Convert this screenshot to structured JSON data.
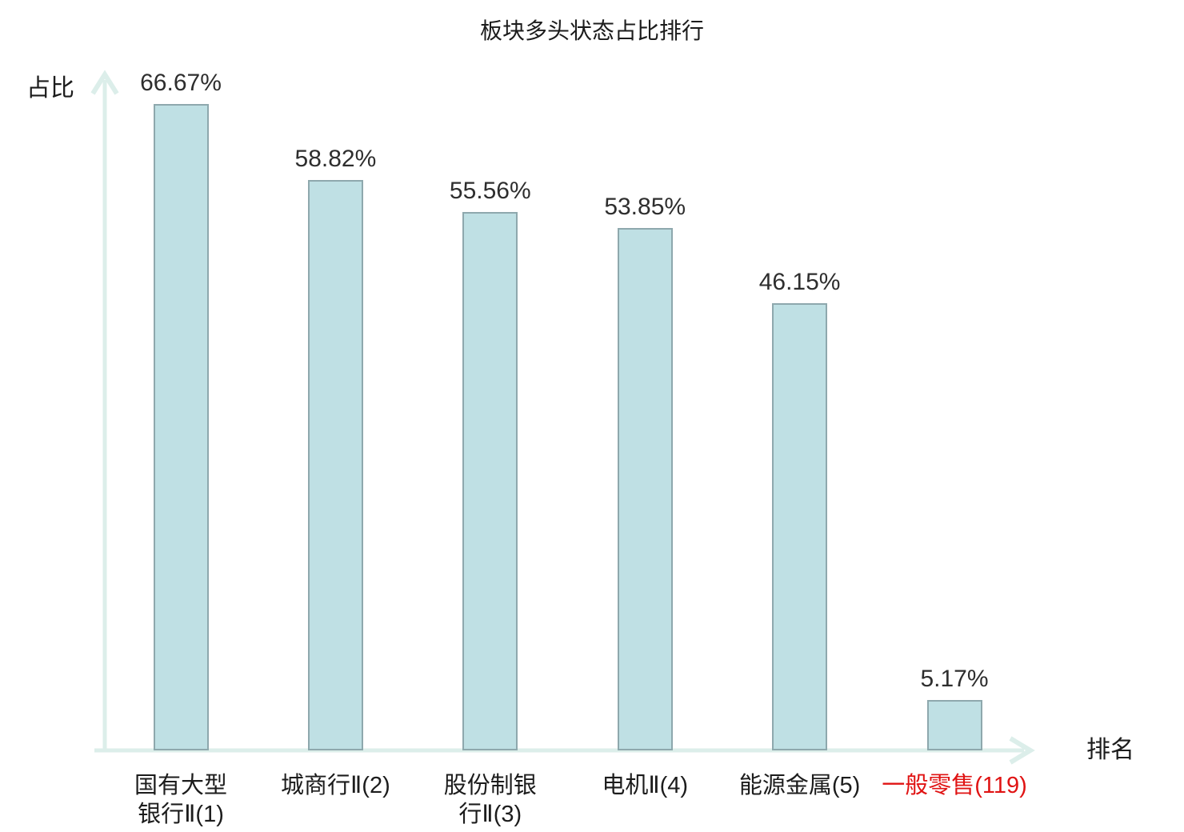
{
  "chart_data": {
    "type": "bar",
    "title": "板块多头状态占比排行",
    "xlabel": "排名",
    "ylabel": "占比",
    "categories": [
      "国有大型银行Ⅱ(1)",
      "城商行Ⅱ(2)",
      "股份制银行Ⅱ(3)",
      "电机Ⅱ(4)",
      "能源金属(5)",
      "一般零售(119)"
    ],
    "category_lines": [
      [
        "国有大型",
        "银行Ⅱ(1)"
      ],
      [
        "城商行Ⅱ(2)"
      ],
      [
        "股份制银",
        "行Ⅱ(3)"
      ],
      [
        "电机Ⅱ(4)"
      ],
      [
        "能源金属(5)"
      ],
      [
        "一般零售(119)"
      ]
    ],
    "values": [
      66.67,
      58.82,
      55.56,
      53.85,
      46.15,
      5.17
    ],
    "value_labels": [
      "66.67%",
      "58.82%",
      "55.56%",
      "53.85%",
      "46.15%",
      "5.17%"
    ],
    "highlighted_category_index": 5,
    "ylim": [
      0,
      70
    ],
    "grid": false,
    "legend": false,
    "colors": {
      "bar_fill": "#bfe0e4",
      "bar_border": "#8ea8ad",
      "axis": "#dceeea",
      "text": "#1c1c1c",
      "value_label": "#2e2e2e",
      "highlight": "#e01313"
    }
  }
}
